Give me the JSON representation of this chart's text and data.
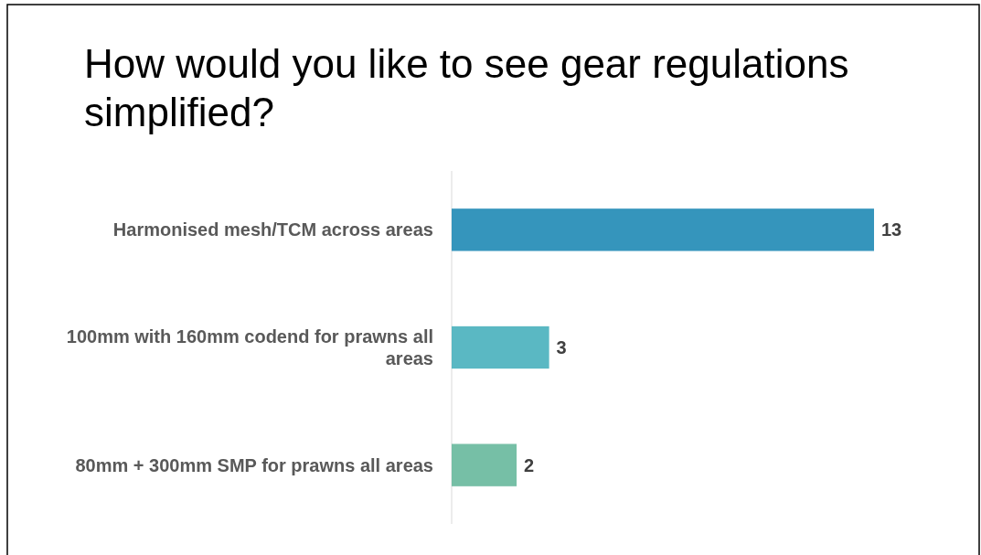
{
  "chart_data": {
    "type": "bar",
    "orientation": "horizontal",
    "title": "How would you like to see gear regulations simplified?",
    "categories": [
      "Harmonised mesh/TCM across areas",
      "100mm with 160mm codend for prawns all areas",
      "80mm + 300mm SMP for prawns all areas"
    ],
    "values": [
      13,
      3,
      2
    ],
    "colors": [
      "#3595bc",
      "#5ab8c3",
      "#76bfa6"
    ],
    "data_labels": true
  }
}
